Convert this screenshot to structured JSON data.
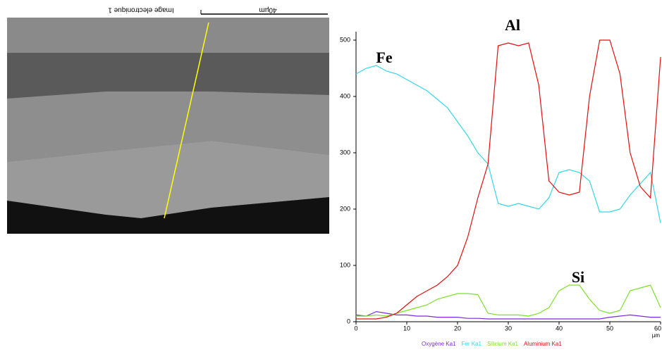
{
  "sem_image": {
    "label": "Image electronique 1",
    "scale_bar": "40µm"
  },
  "chart_data": {
    "type": "line",
    "x": [
      0,
      2,
      4,
      6,
      8,
      10,
      12,
      14,
      16,
      18,
      20,
      22,
      24,
      26,
      28,
      30,
      32,
      34,
      36,
      38,
      40,
      42,
      44,
      46,
      48,
      50,
      52,
      54,
      56,
      58,
      60
    ],
    "series": [
      {
        "name": "Oxygène Ka1",
        "color": "#7b2be0",
        "values": [
          12,
          10,
          18,
          15,
          12,
          12,
          10,
          10,
          8,
          8,
          8,
          6,
          6,
          5,
          5,
          5,
          5,
          5,
          5,
          5,
          5,
          5,
          5,
          5,
          5,
          8,
          10,
          12,
          10,
          8,
          8
        ]
      },
      {
        "name": "Fer Ka1",
        "color": "#33d6e8",
        "values": [
          440,
          450,
          455,
          445,
          440,
          430,
          420,
          410,
          395,
          380,
          355,
          330,
          300,
          280,
          210,
          205,
          210,
          205,
          200,
          220,
          265,
          270,
          265,
          250,
          195,
          195,
          200,
          225,
          245,
          265,
          175
        ]
      },
      {
        "name": "Silicium Ka1",
        "color": "#7ee02a",
        "values": [
          10,
          10,
          12,
          10,
          15,
          20,
          25,
          30,
          40,
          45,
          50,
          50,
          48,
          15,
          12,
          12,
          12,
          10,
          15,
          25,
          55,
          65,
          65,
          40,
          20,
          15,
          20,
          55,
          60,
          65,
          25
        ]
      },
      {
        "name": "Aluminium Ka1",
        "color": "#e01010",
        "values": [
          5,
          5,
          5,
          8,
          15,
          30,
          45,
          55,
          65,
          80,
          100,
          150,
          220,
          280,
          490,
          495,
          490,
          495,
          420,
          250,
          230,
          225,
          230,
          400,
          500,
          500,
          440,
          300,
          240,
          220,
          470
        ]
      }
    ],
    "annotations": [
      "Fe",
      "Al",
      "Si"
    ],
    "x_label": "µm",
    "xlim": [
      0,
      60
    ],
    "xticks": [
      0,
      10,
      20,
      30,
      40,
      50,
      60
    ],
    "ylim": [
      0,
      500
    ],
    "yticks": [
      0,
      100,
      200,
      300,
      400,
      500
    ]
  }
}
